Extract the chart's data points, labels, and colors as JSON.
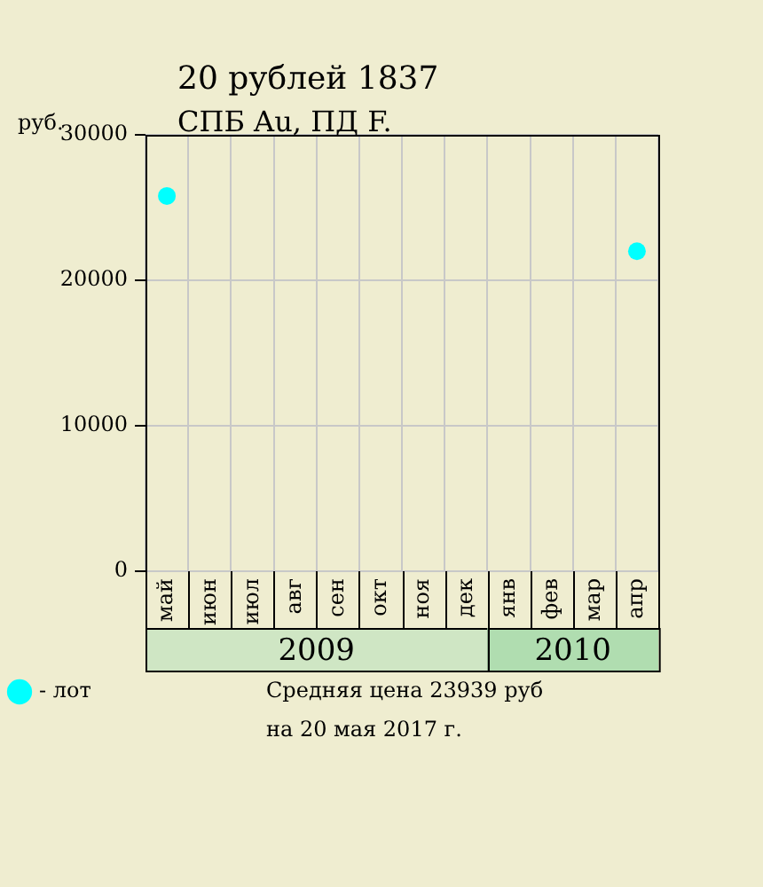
{
  "chart_data": {
    "type": "scatter",
    "title": "20 рублей 1837",
    "subtitle": "СПБ Au, ПД F.",
    "ylabel": "руб.",
    "categories": [
      "май",
      "июн",
      "июл",
      "авг",
      "сен",
      "окт",
      "ноя",
      "дек",
      "янв",
      "фев",
      "мар",
      "апр"
    ],
    "series": [
      {
        "name": "- лот",
        "color": "#00ffff",
        "values": [
          25800,
          null,
          null,
          null,
          null,
          null,
          null,
          null,
          null,
          null,
          null,
          22000
        ]
      }
    ],
    "ylim": [
      0,
      30000
    ],
    "yticks": [
      0,
      10000,
      20000,
      30000
    ],
    "grid": true,
    "legend": "bottom left",
    "marker": "circle",
    "annotations": [
      "2009",
      "2010",
      "Средняя цена 23939 руб",
      "на 20 мая 2017 г."
    ]
  }
}
